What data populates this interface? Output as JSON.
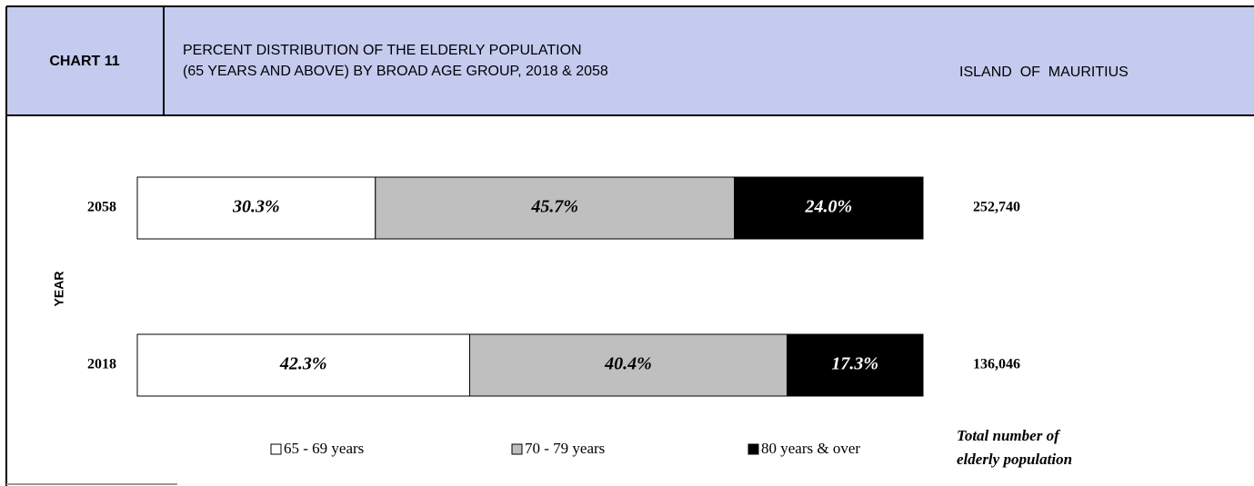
{
  "header": {
    "chart_label": "CHART 11",
    "title_lines": [
      "PERCENT DISTRIBUTION OF THE ELDERLY POPULATION",
      "(65 YEARS AND ABOVE) BY BROAD AGE GROUP, 2018 & 2058"
    ],
    "region": "ISLAND  OF  MAURITIUS"
  },
  "chart_data": {
    "type": "stacked-bar-horizontal",
    "y_label": "YEAR",
    "categories": [
      "2058",
      "2018"
    ],
    "xlim": [
      0,
      100
    ],
    "series": [
      {
        "name": "65 - 69 years",
        "color": "#ffffff",
        "label_color": "#000000",
        "values": [
          30.3,
          42.3
        ],
        "value_labels": [
          "30.3%",
          "42.3%"
        ]
      },
      {
        "name": "70 - 79 years",
        "color": "#bfbfbf",
        "label_color": "#000000",
        "values": [
          45.7,
          40.4
        ],
        "value_labels": [
          "45.7%",
          "40.4%"
        ]
      },
      {
        "name": "80 years & over",
        "color": "#000000",
        "label_color": "#ffffff",
        "values": [
          24.0,
          17.3
        ],
        "value_labels": [
          "24.0%",
          "17.3%"
        ]
      }
    ],
    "totals": [
      {
        "value": 252740,
        "label": "252,740"
      },
      {
        "value": 136046,
        "label": "136,046"
      }
    ],
    "totals_title_lines": [
      "Total number of",
      "elderly population"
    ]
  }
}
